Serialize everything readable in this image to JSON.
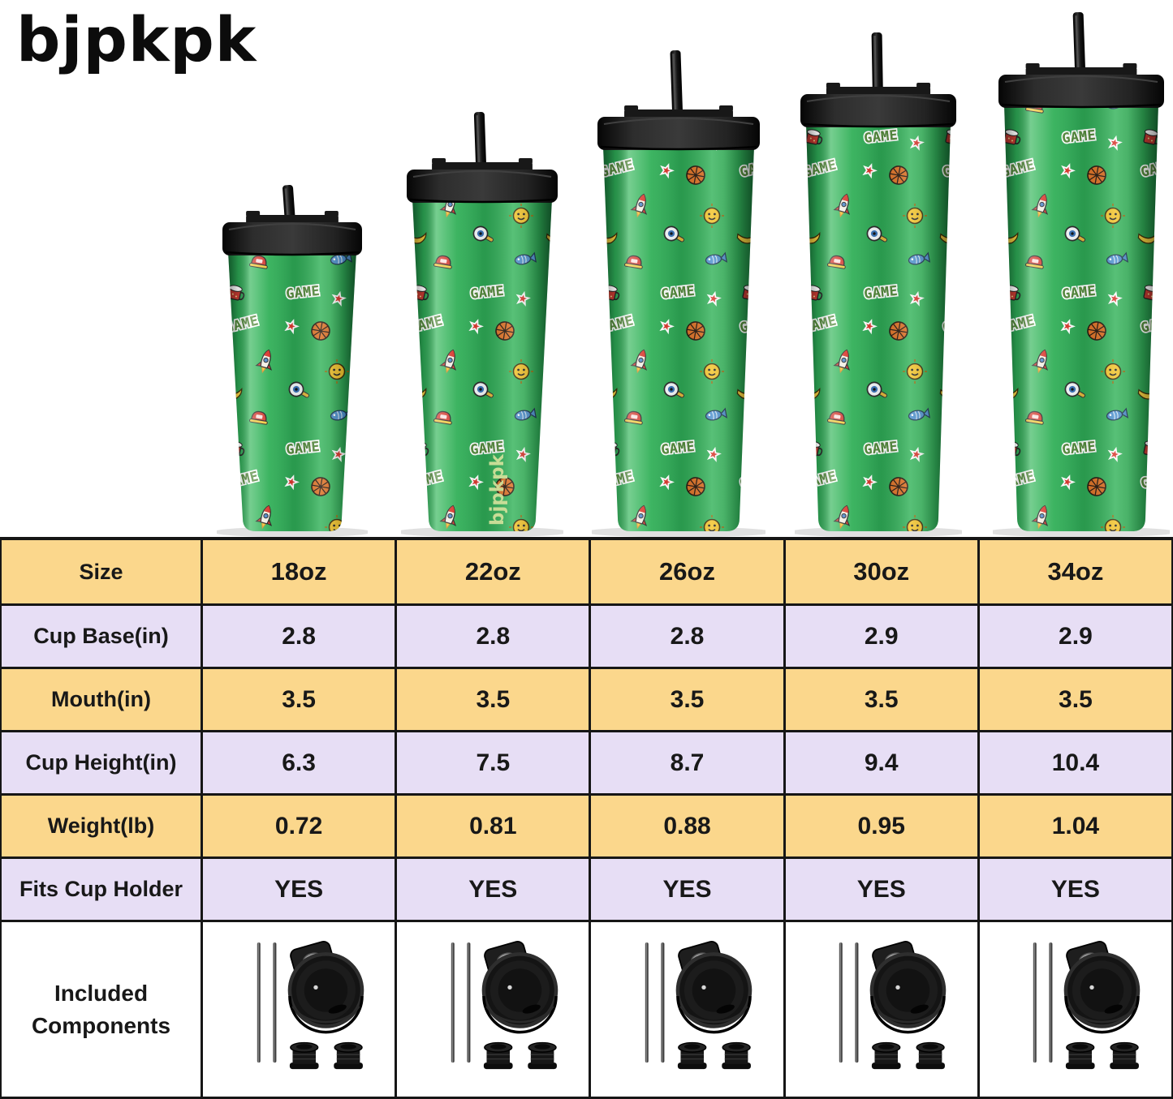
{
  "brand": {
    "logo": "bjpkpk"
  },
  "showcase": {
    "cup_logo_text": "bjpkpk",
    "sticker_text": "GAME",
    "cup_color": "#2fa352",
    "lid_color": "#1a1a1a",
    "tumbler_sizes": [
      "18oz",
      "22oz",
      "26oz",
      "30oz",
      "34oz"
    ]
  },
  "table": {
    "size_row": {
      "label": "Size",
      "values": [
        "18oz",
        "22oz",
        "26oz",
        "30oz",
        "34oz"
      ]
    },
    "rows": [
      {
        "label": "Cup Base(in)",
        "values": [
          "2.8",
          "2.8",
          "2.8",
          "2.9",
          "2.9"
        ]
      },
      {
        "label": "Mouth(in)",
        "values": [
          "3.5",
          "3.5",
          "3.5",
          "3.5",
          "3.5"
        ]
      },
      {
        "label": "Cup Height(in)",
        "values": [
          "6.3",
          "7.5",
          "8.7",
          "9.4",
          "10.4"
        ]
      },
      {
        "label": "Weight(lb)",
        "values": [
          "0.72",
          "0.81",
          "0.88",
          "0.95",
          "1.04"
        ]
      },
      {
        "label": "Fits Cup Holder",
        "values": [
          "YES",
          "YES",
          "YES",
          "YES",
          "YES"
        ]
      }
    ],
    "components_row": {
      "label": "Included Components",
      "items": [
        "straws-icon",
        "flip-lid-icon",
        "straw-stoppers-icon"
      ]
    },
    "colors": {
      "header_bg": "#fbd78c",
      "alt_bg": "#e7def5",
      "border": "#161616"
    }
  }
}
